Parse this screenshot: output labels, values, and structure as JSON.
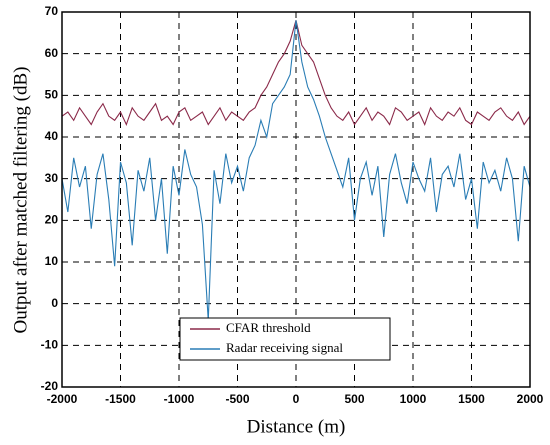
{
  "chart_data": {
    "type": "line",
    "xlabel": "Distance (m)",
    "ylabel": "Output after matched filtering (dB)",
    "x": [
      -2000,
      -1950,
      -1900,
      -1850,
      -1800,
      -1750,
      -1700,
      -1650,
      -1600,
      -1550,
      -1500,
      -1450,
      -1400,
      -1350,
      -1300,
      -1250,
      -1200,
      -1150,
      -1100,
      -1050,
      -1000,
      -950,
      -900,
      -850,
      -800,
      -750,
      -700,
      -650,
      -600,
      -550,
      -500,
      -450,
      -400,
      -350,
      -300,
      -250,
      -200,
      -150,
      -100,
      -50,
      0,
      50,
      100,
      150,
      200,
      250,
      300,
      350,
      400,
      450,
      500,
      550,
      600,
      650,
      700,
      750,
      800,
      850,
      900,
      950,
      1000,
      1050,
      1100,
      1150,
      1200,
      1250,
      1300,
      1350,
      1400,
      1450,
      1500,
      1550,
      1600,
      1650,
      1700,
      1750,
      1800,
      1850,
      1900,
      1950,
      2000
    ],
    "series": [
      {
        "name": "CFAR threshold",
        "color": "#8b2a4a",
        "values": [
          45,
          46,
          44,
          47,
          45,
          43,
          46,
          48,
          45,
          44,
          46,
          43,
          47,
          45,
          44,
          46,
          48,
          44,
          45,
          43,
          46,
          47,
          44,
          45,
          46,
          43,
          45,
          47,
          44,
          46,
          45,
          44,
          46,
          47,
          50,
          52,
          55,
          58,
          60,
          63,
          68,
          62,
          60,
          58,
          54,
          50,
          47,
          45,
          44,
          46,
          43,
          45,
          47,
          44,
          46,
          45,
          43,
          47,
          46,
          44,
          45,
          46,
          43,
          47,
          45,
          44,
          46,
          45,
          47,
          44,
          43,
          46,
          45,
          44,
          46,
          47,
          45,
          44,
          46,
          43,
          45
        ]
      },
      {
        "name": "Radar receiving signal",
        "color": "#2a7db5",
        "values": [
          30,
          22,
          35,
          28,
          33,
          18,
          31,
          36,
          25,
          9,
          34,
          29,
          14,
          32,
          27,
          35,
          20,
          30,
          12,
          33,
          26,
          37,
          31,
          28,
          19,
          -4,
          32,
          24,
          36,
          29,
          33,
          27,
          35,
          38,
          44,
          40,
          48,
          50,
          52,
          55,
          68,
          58,
          52,
          49,
          45,
          40,
          36,
          32,
          28,
          35,
          20,
          30,
          34,
          26,
          33,
          16,
          31,
          36,
          29,
          24,
          34,
          30,
          27,
          35,
          22,
          31,
          33,
          28,
          36,
          25,
          30,
          18,
          34,
          29,
          32,
          27,
          35,
          30,
          15,
          33,
          28
        ]
      }
    ],
    "xlim": [
      -2000,
      2000
    ],
    "xticks": [
      -2000,
      -1500,
      -1000,
      -500,
      0,
      500,
      1000,
      1500,
      2000
    ],
    "ylim": [
      -20,
      70
    ],
    "yticks": [
      -20,
      -10,
      0,
      10,
      20,
      30,
      40,
      50,
      60,
      70
    ],
    "grid": true
  }
}
